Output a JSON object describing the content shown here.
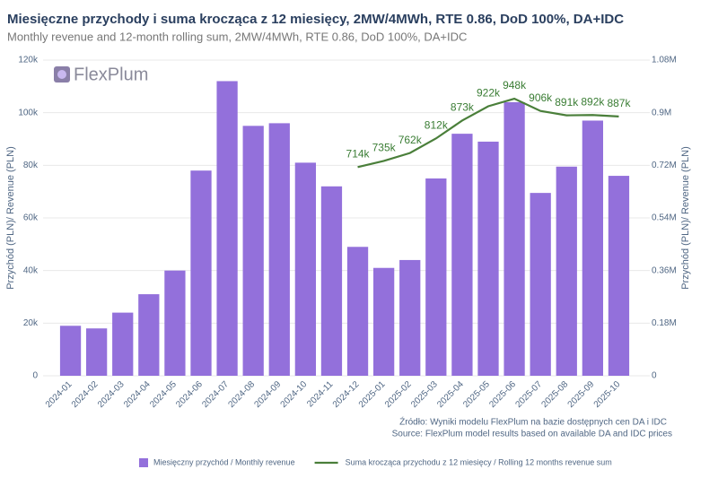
{
  "chart_data": {
    "type": "bar_line",
    "title": "Miesięczne przychody i suma krocząca z 12 miesięcy, 2MW/4MWh, RTE 0.86, DoD 100%, DA+IDC",
    "subtitle": "Monthly revenue and 12-month rolling sum, 2MW/4MWh, RTE 0.86, DoD 100%, DA+IDC",
    "logo": "FlexPlum",
    "source": [
      "Źródło: Wyniki modelu FlexPlum na bazie dostępnych cen DA i IDC",
      "Source: FlexPlum model results based on available DA and IDC prices"
    ],
    "y_label": "Przychód (PLN)/ Revenue (PLN)",
    "y2_label": "Przychód (PLN)/ Revenue (PLN)",
    "categories": [
      "2024-01",
      "2024-02",
      "2024-03",
      "2024-04",
      "2024-05",
      "2024-06",
      "2024-07",
      "2024-08",
      "2024-09",
      "2024-10",
      "2024-11",
      "2024-12",
      "2025-01",
      "2025-02",
      "2025-03",
      "2025-04",
      "2025-05",
      "2025-06",
      "2025-07",
      "2025-08",
      "2025-09",
      "2025-10"
    ],
    "series": [
      {
        "name": "Miesięczny przychód / Monthly revenue",
        "type": "bar",
        "color": "#9370db",
        "values": [
          19000,
          18000,
          24000,
          31000,
          40000,
          78000,
          112000,
          95000,
          96000,
          81000,
          72000,
          49000,
          41000,
          44000,
          75000,
          92000,
          89000,
          104000,
          69500,
          79500,
          97000,
          76000
        ]
      },
      {
        "name": "Suma krocząca przychodu z 12 miesięcy / Rolling 12 months revenue sum",
        "type": "line",
        "axis": "y2",
        "color": "#4a7f3a",
        "values": [
          null,
          null,
          null,
          null,
          null,
          null,
          null,
          null,
          null,
          null,
          null,
          714000,
          735000,
          762000,
          812000,
          873000,
          922000,
          948000,
          906000,
          891000,
          892000,
          887000
        ],
        "value_labels": [
          null,
          null,
          null,
          null,
          null,
          null,
          null,
          null,
          null,
          null,
          null,
          "714k",
          "735k",
          "762k",
          "812k",
          "873k",
          "922k",
          "948k",
          "906k",
          "891k",
          "892k",
          "887k"
        ]
      }
    ],
    "ylim": [
      0,
      120000
    ],
    "yticks": [
      {
        "value": 0,
        "label": "0"
      },
      {
        "value": 20000,
        "label": "20k"
      },
      {
        "value": 40000,
        "label": "40k"
      },
      {
        "value": 60000,
        "label": "60k"
      },
      {
        "value": 80000,
        "label": "80k"
      },
      {
        "value": 100000,
        "label": "100k"
      },
      {
        "value": 120000,
        "label": "120k"
      }
    ],
    "y2lim": [
      0,
      1080000
    ],
    "y2ticks": [
      {
        "value": 0,
        "label": "0"
      },
      {
        "value": 180000,
        "label": "0.18M"
      },
      {
        "value": 360000,
        "label": "0.36M"
      },
      {
        "value": 540000,
        "label": "0.54M"
      },
      {
        "value": 720000,
        "label": "0.72M"
      },
      {
        "value": 900000,
        "label": "0.9M"
      },
      {
        "value": 1080000,
        "label": "1.08M"
      }
    ],
    "grid": true
  }
}
